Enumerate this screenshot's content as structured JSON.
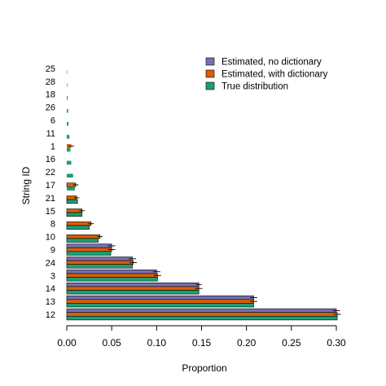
{
  "chart_data": {
    "type": "bar",
    "orientation": "horizontal",
    "xlabel": "Proportion",
    "ylabel": "String ID",
    "xlim": [
      0.0,
      0.3
    ],
    "xticks": [
      "0.00",
      "0.05",
      "0.10",
      "0.15",
      "0.20",
      "0.25",
      "0.30"
    ],
    "grid": false,
    "legend_position": "top-right",
    "categories": [
      "25",
      "28",
      "18",
      "26",
      "6",
      "11",
      "1",
      "16",
      "22",
      "17",
      "21",
      "15",
      "8",
      "10",
      "9",
      "24",
      "3",
      "14",
      "13",
      "12"
    ],
    "series": [
      {
        "name": "Estimated, no dictionary",
        "color": "#7570b3",
        "values": [
          0,
          0,
          0,
          0,
          0,
          0,
          0,
          0,
          0,
          0,
          0,
          0,
          0,
          0,
          0.05,
          0.073,
          0.1,
          0.147,
          0.208,
          0.3
        ],
        "errors": [
          0,
          0,
          0,
          0,
          0,
          0,
          0,
          0,
          0,
          0,
          0,
          0,
          0,
          0,
          0.004,
          0.004,
          0.004,
          0.003,
          0.004,
          0.004
        ]
      },
      {
        "name": "Estimated, with dictionary",
        "color": "#d95f02",
        "values": [
          0,
          0,
          0,
          0,
          0,
          0,
          0.005,
          0,
          0,
          0.01,
          0.011,
          0.017,
          0.027,
          0.037,
          0.05,
          0.074,
          0.101,
          0.147,
          0.208,
          0.301
        ],
        "errors": [
          0,
          0,
          0,
          0,
          0,
          0,
          0.003,
          0,
          0,
          0.003,
          0.003,
          0.003,
          0.003,
          0.003,
          0.004,
          0.004,
          0.004,
          0.004,
          0.004,
          0.004
        ]
      },
      {
        "name": "True distribution",
        "color": "#1b9e77",
        "values": [
          0.0005,
          0.0005,
          0.001,
          0.0015,
          0.002,
          0.003,
          0.004,
          0.005,
          0.007,
          0.009,
          0.012,
          0.017,
          0.025,
          0.035,
          0.049,
          0.073,
          0.101,
          0.147,
          0.208,
          0.301
        ],
        "errors": [
          0,
          0,
          0,
          0,
          0,
          0,
          0,
          0,
          0,
          0,
          0,
          0,
          0,
          0,
          0,
          0,
          0,
          0,
          0,
          0
        ]
      }
    ]
  }
}
